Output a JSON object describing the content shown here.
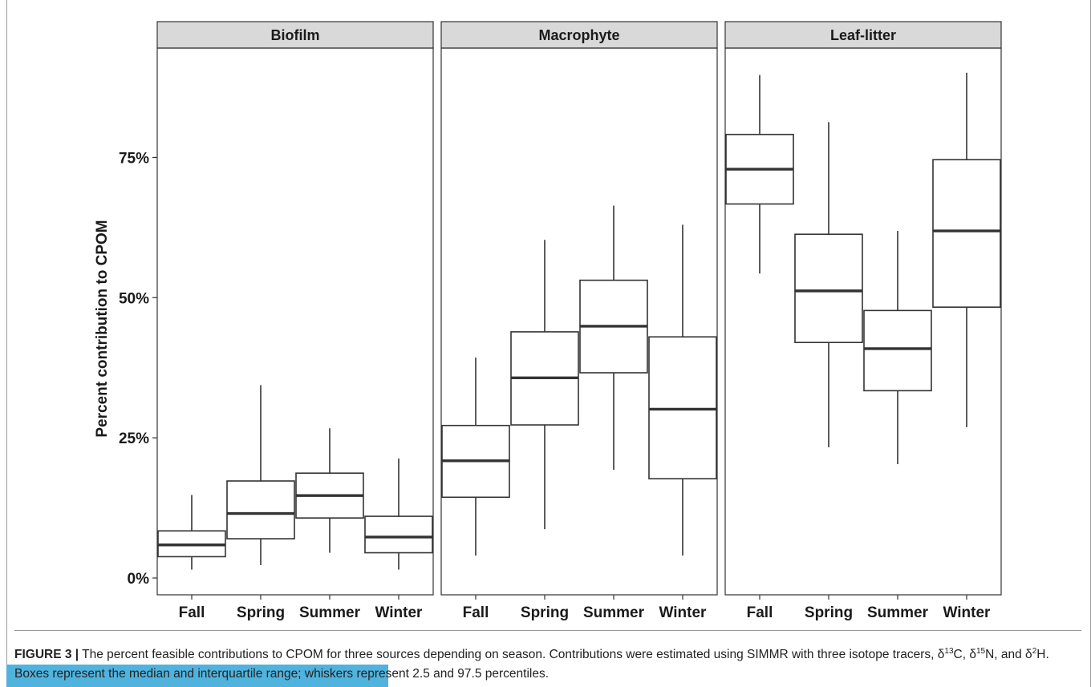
{
  "chart_data": {
    "type": "boxplot",
    "ylabel": "Percent contribution to CPOM",
    "xlabel": "",
    "ylim": [
      -0.03,
      0.945
    ],
    "yticks": [
      0,
      0.25,
      0.5,
      0.75
    ],
    "ytick_labels": [
      "0%",
      "25%",
      "50%",
      "75%"
    ],
    "grid": false,
    "categories": [
      "Fall",
      "Spring",
      "Summer",
      "Winter"
    ],
    "panels": [
      {
        "name": "Biofilm",
        "boxes": [
          {
            "category": "Fall",
            "min": 0.015,
            "q1": 0.038,
            "median": 0.059,
            "q3": 0.084,
            "max": 0.148
          },
          {
            "category": "Spring",
            "min": 0.023,
            "q1": 0.07,
            "median": 0.115,
            "q3": 0.173,
            "max": 0.344
          },
          {
            "category": "Summer",
            "min": 0.045,
            "q1": 0.107,
            "median": 0.147,
            "q3": 0.187,
            "max": 0.267
          },
          {
            "category": "Winter",
            "min": 0.015,
            "q1": 0.045,
            "median": 0.073,
            "q3": 0.11,
            "max": 0.213
          }
        ]
      },
      {
        "name": "Macrophyte",
        "boxes": [
          {
            "category": "Fall",
            "min": 0.04,
            "q1": 0.144,
            "median": 0.209,
            "q3": 0.272,
            "max": 0.393
          },
          {
            "category": "Spring",
            "min": 0.087,
            "q1": 0.273,
            "median": 0.357,
            "q3": 0.439,
            "max": 0.603
          },
          {
            "category": "Summer",
            "min": 0.193,
            "q1": 0.366,
            "median": 0.449,
            "q3": 0.531,
            "max": 0.664
          },
          {
            "category": "Winter",
            "min": 0.04,
            "q1": 0.177,
            "median": 0.301,
            "q3": 0.43,
            "max": 0.63
          }
        ]
      },
      {
        "name": "Leaf-litter",
        "boxes": [
          {
            "category": "Fall",
            "min": 0.543,
            "q1": 0.667,
            "median": 0.729,
            "q3": 0.791,
            "max": 0.897
          },
          {
            "category": "Spring",
            "min": 0.233,
            "q1": 0.42,
            "median": 0.512,
            "q3": 0.613,
            "max": 0.813
          },
          {
            "category": "Summer",
            "min": 0.203,
            "q1": 0.334,
            "median": 0.409,
            "q3": 0.477,
            "max": 0.619
          },
          {
            "category": "Winter",
            "min": 0.269,
            "q1": 0.483,
            "median": 0.619,
            "q3": 0.746,
            "max": 0.901
          }
        ]
      }
    ]
  },
  "caption": {
    "label": "FIGURE 3 |",
    "part1": " The percent feasible contributions to CPOM for three sources depending on season. Contributions were estimated using SIMMR with three isotope tracers, δ",
    "sup1": "13",
    "part2": "C, δ",
    "sup2": "15",
    "part3": "N, and δ",
    "sup3": "2",
    "part4": "H. Boxes represent the median and interquartile range; whiskers represent 2.5 and 97.5 percentiles."
  },
  "colors": {
    "strip_fill": "#d9d9d9",
    "box_stroke": "#333333",
    "highlight": "#4fb3de"
  }
}
